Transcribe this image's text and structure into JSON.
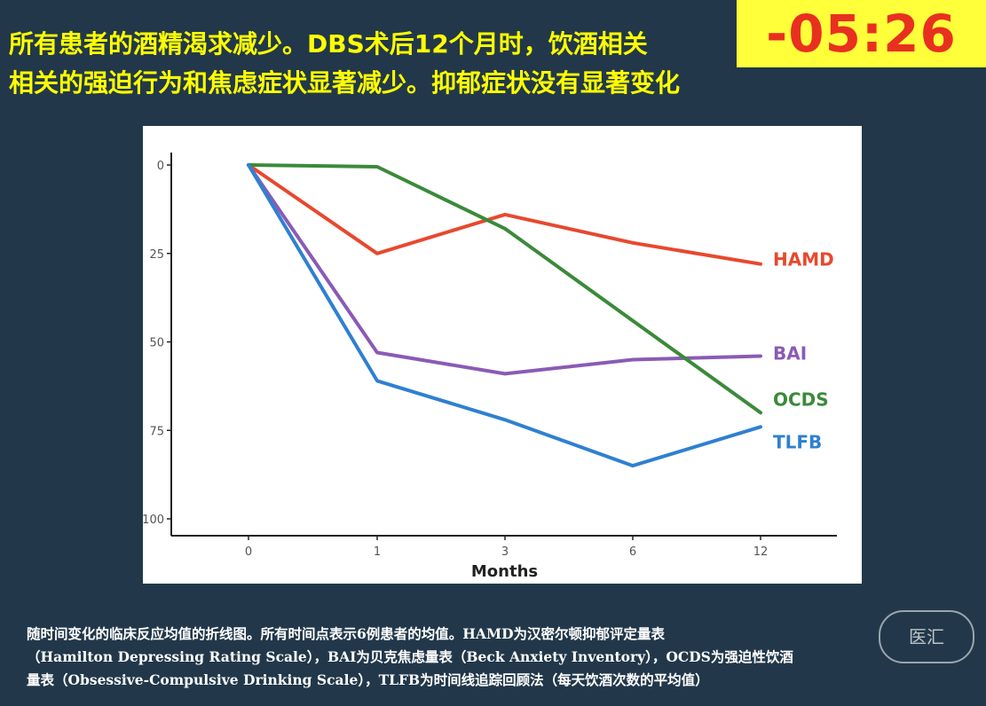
{
  "headline": {
    "line1": "所有患者的酒精渴求减少。DBS术后12个月时，饮酒相关",
    "line2": "相关的强迫行为和焦虑症状显著减少。抑郁症状没有显著变化"
  },
  "timer": {
    "text": "-05:26"
  },
  "caption": {
    "line1": "随时间变化的临床反应均值的折线图。所有时间点表示6例患者的均值。HAMD为汉密尔顿抑郁评定量表",
    "line2": "（Hamilton Depressing Rating Scale），BAI为贝克焦虑量表（Beck Anxiety Inventory），OCDS为强迫性饮酒",
    "line3": "量表（Obsessive-Compulsive Drinking Scale），TLFB为时间线追踪回顾法（每天饮酒次数的平均值）"
  },
  "watermark": {
    "text": "医汇"
  },
  "chart_data": {
    "type": "line",
    "xlabel": "Months",
    "ylabel": "",
    "categories": [
      "0",
      "1",
      "3",
      "6",
      "12"
    ],
    "y_ticks": [
      0,
      25,
      50,
      75,
      100
    ],
    "ylim": [
      0,
      100
    ],
    "y_reversed": true,
    "grid": false,
    "legend": "direct labels at line ends",
    "series": [
      {
        "name": "HAMD",
        "color": "#e8482e",
        "values": [
          0,
          25,
          14,
          22,
          28
        ]
      },
      {
        "name": "BAI",
        "color": "#8a5bb5",
        "values": [
          0,
          53,
          59,
          55,
          54
        ]
      },
      {
        "name": "OCDS",
        "color": "#3b8a3a",
        "values": [
          0,
          0.5,
          18,
          44,
          70
        ]
      },
      {
        "name": "TLFB",
        "color": "#2f80d1",
        "values": [
          0,
          61,
          72,
          85,
          74
        ]
      }
    ]
  }
}
